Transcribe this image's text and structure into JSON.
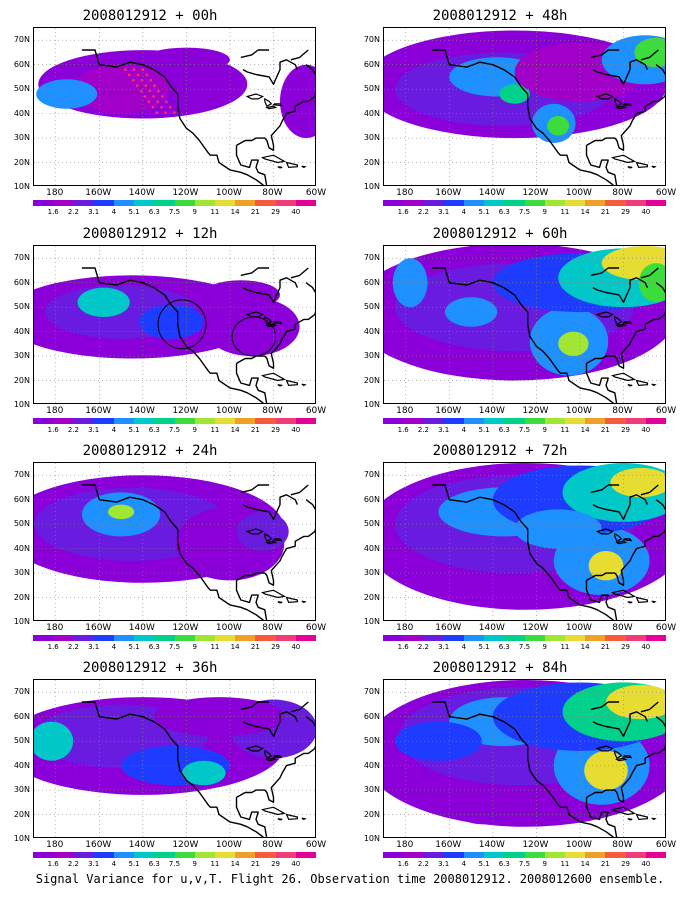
{
  "panels": [
    {
      "title": "2008012912 + 00h",
      "lead": 0
    },
    {
      "title": "2008012912 + 12h",
      "lead": 12
    },
    {
      "title": "2008012912 + 24h",
      "lead": 24
    },
    {
      "title": "2008012912 + 36h",
      "lead": 36
    },
    {
      "title": "2008012912 + 48h",
      "lead": 48
    },
    {
      "title": "2008012912 + 60h",
      "lead": 60
    },
    {
      "title": "2008012912 + 72h",
      "lead": 72
    },
    {
      "title": "2008012912 + 84h",
      "lead": 84
    }
  ],
  "axes": {
    "lat_labels": [
      "70N",
      "60N",
      "50N",
      "40N",
      "30N",
      "20N",
      "10N"
    ],
    "lon_labels": [
      "180",
      "160W",
      "140W",
      "120W",
      "100W",
      "80W",
      "60W"
    ]
  },
  "colorbar": {
    "labels": [
      "1.6",
      "2.2",
      "3.1",
      "4",
      "5.1",
      "6.3",
      "7.5",
      "9",
      "11",
      "14",
      "21",
      "29",
      "40"
    ],
    "colors": [
      "#8b00d8",
      "#a000c8",
      "#6a1be0",
      "#1e3cff",
      "#1e90ff",
      "#00c8c8",
      "#00d28c",
      "#3cdc3c",
      "#a0e632",
      "#e6dc32",
      "#f0a028",
      "#fa5a3c",
      "#f03c78",
      "#e60096"
    ]
  },
  "footer": "Signal Variance for u,v,T. Flight 26. Observation time 2008012912. 2008012600 ensemble."
}
